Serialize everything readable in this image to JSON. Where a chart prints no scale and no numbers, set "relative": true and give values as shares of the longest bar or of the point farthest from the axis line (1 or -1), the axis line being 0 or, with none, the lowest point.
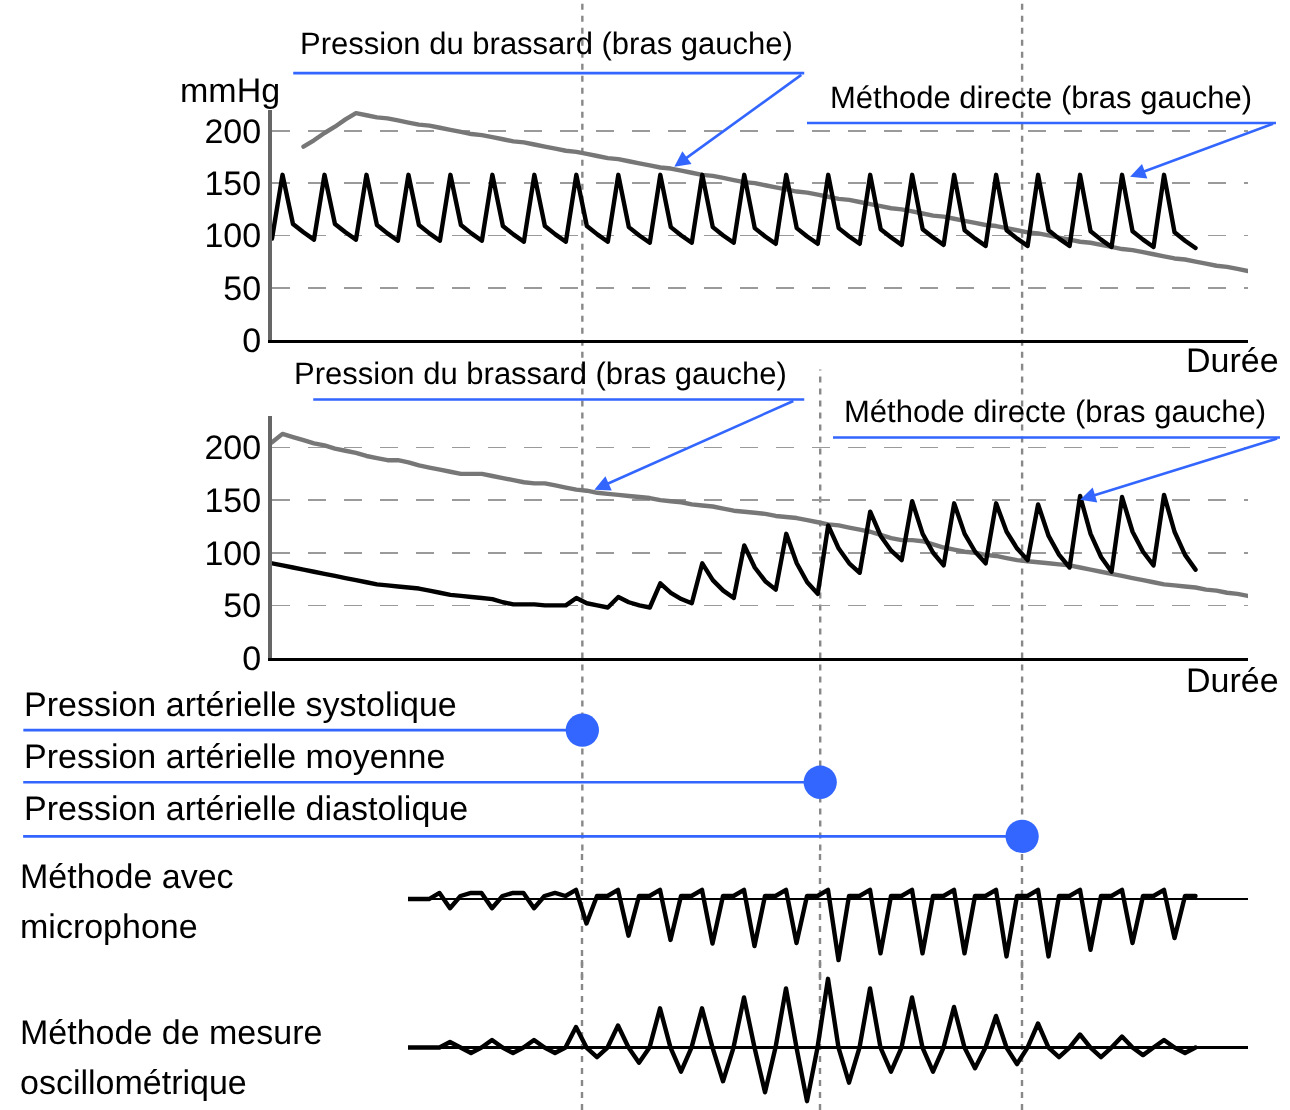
{
  "chart_data": [
    {
      "type": "line",
      "ylabel": "mmHg",
      "xlabel": "Durée",
      "grid": "y",
      "tick_labels": "y",
      "ylim": [
        0,
        220
      ],
      "yticks": [
        0,
        50,
        100,
        150,
        200
      ],
      "annotations": [
        "Pression du brassard (bras gauche)",
        "Méthode directe (bras gauche)"
      ],
      "categories": [
        null,
        null,
        null,
        null,
        null,
        null,
        null,
        null,
        null,
        null,
        null,
        null,
        null,
        null,
        null,
        null,
        null,
        null,
        null,
        null,
        null,
        null,
        null,
        null,
        null,
        null,
        null,
        null,
        null,
        null,
        null,
        null,
        null,
        null,
        null,
        null,
        null,
        null,
        null,
        null,
        null,
        null,
        null,
        null,
        null,
        null,
        null,
        null,
        null,
        null,
        null,
        null,
        null,
        null,
        null,
        null,
        null,
        null,
        null,
        null,
        null,
        null,
        null,
        null,
        null,
        null,
        null,
        null,
        null,
        null,
        null,
        null,
        null,
        null,
        null,
        null,
        null,
        null,
        null,
        null,
        null,
        null,
        null,
        null,
        null,
        null,
        null,
        null,
        null,
        null,
        null,
        null,
        null,
        null
      ],
      "series": [
        {
          "color": "#777777",
          "values": [
            null,
            null,
            null,
            185,
            191,
            198,
            204,
            211,
            217,
            215,
            213,
            212,
            210,
            208,
            206,
            205,
            203,
            201,
            199,
            197,
            196,
            194,
            192,
            190,
            189,
            187,
            185,
            183,
            181,
            180,
            178,
            176,
            174,
            173,
            171,
            169,
            167,
            165,
            164,
            162,
            160,
            158,
            157,
            155,
            153,
            151,
            150,
            148,
            146,
            144,
            142,
            141,
            139,
            137,
            135,
            134,
            132,
            130,
            128,
            126,
            125,
            123,
            121,
            119,
            118,
            116,
            114,
            112,
            110,
            109,
            107,
            105,
            103,
            102,
            100,
            98,
            96,
            94,
            93,
            91,
            89,
            87,
            86,
            84,
            82,
            80,
            78,
            77,
            75,
            73,
            71,
            70,
            68,
            66
          ]
        },
        {
          "color": "#000000",
          "values": [
            97,
            158,
            111,
            103,
            96,
            158,
            111,
            103,
            96,
            158,
            110,
            102,
            95,
            158,
            110,
            102,
            95,
            158,
            110,
            102,
            95,
            158,
            109,
            101,
            94,
            158,
            109,
            101,
            94,
            158,
            109,
            101,
            94,
            158,
            108,
            100,
            93,
            158,
            108,
            100,
            93,
            158,
            108,
            100,
            93,
            158,
            107,
            99,
            92,
            158,
            107,
            99,
            92,
            158,
            107,
            99,
            92,
            158,
            106,
            98,
            91,
            158,
            106,
            98,
            91,
            158,
            105,
            97,
            90,
            158,
            105,
            97,
            90,
            158,
            105,
            97,
            90,
            158,
            104,
            96,
            89,
            158,
            104,
            96,
            89,
            158,
            103,
            95,
            88,
            null,
            null,
            null,
            null,
            null
          ]
        }
      ]
    },
    {
      "type": "line",
      "xlabel": "Durée",
      "grid": "y",
      "tick_labels": "y",
      "ylim": [
        0,
        230
      ],
      "yticks": [
        0,
        50,
        100,
        150,
        200
      ],
      "annotations": [
        "Pression du brassard (bras gauche)",
        "Méthode directe (bras gauche)",
        "Pression artérielle systolique",
        "Pression artérielle moyenne",
        "Pression artérielle diastolique"
      ],
      "categories": [
        null,
        null,
        null,
        null,
        null,
        null,
        null,
        null,
        null,
        null,
        null,
        null,
        null,
        null,
        null,
        null,
        null,
        null,
        null,
        null,
        null,
        null,
        null,
        null,
        null,
        null,
        null,
        null,
        null,
        null,
        null,
        null,
        null,
        null,
        null,
        null,
        null,
        null,
        null,
        null,
        null,
        null,
        null,
        null,
        null,
        null,
        null,
        null,
        null,
        null,
        null,
        null,
        null,
        null,
        null,
        null,
        null,
        null,
        null,
        null,
        null,
        null,
        null,
        null,
        null,
        null,
        null,
        null,
        null,
        null,
        null,
        null,
        null,
        null,
        null,
        null,
        null,
        null,
        null,
        null,
        null,
        null,
        null,
        null,
        null,
        null,
        null,
        null,
        null,
        null,
        null,
        null,
        null,
        null
      ],
      "series": [
        {
          "color": "#777777",
          "values": [
            205,
            213,
            210,
            207,
            204,
            202,
            199,
            197,
            195,
            192,
            190,
            188,
            188,
            186,
            183,
            181,
            179,
            177,
            175,
            175,
            175,
            173,
            171,
            169,
            167,
            166,
            166,
            164,
            162,
            160,
            159,
            157,
            156,
            155,
            154,
            153,
            152,
            150,
            149,
            148,
            146,
            145,
            144,
            142,
            140,
            139,
            138,
            137,
            135,
            134,
            133,
            131,
            129,
            127,
            126,
            124,
            122,
            120,
            117,
            114,
            112,
            112,
            111,
            108,
            105,
            103,
            101,
            100,
            98,
            97,
            95,
            93,
            92,
            91,
            90,
            89,
            88,
            86,
            84,
            82,
            80,
            78,
            76,
            74,
            72,
            70,
            69,
            68,
            67,
            65,
            64,
            62,
            61,
            59
          ]
        },
        {
          "color": "#000000",
          "values": [
            90,
            88,
            86,
            84,
            82,
            80,
            78,
            76,
            74,
            72,
            70,
            69,
            68,
            67,
            66,
            64,
            62,
            60,
            59,
            58,
            57,
            56,
            53,
            51,
            51,
            51,
            50,
            50,
            50,
            57,
            52,
            50,
            48,
            58,
            53,
            50,
            48,
            71,
            62,
            56,
            52,
            90,
            74,
            64,
            57,
            107,
            86,
            73,
            65,
            118,
            90,
            72,
            61,
            126,
            104,
            90,
            81,
            139,
            116,
            102,
            93,
            149,
            118,
            100,
            88,
            147,
            118,
            101,
            90,
            147,
            120,
            104,
            93,
            146,
            116,
            98,
            86,
            154,
            118,
            96,
            82,
            153,
            120,
            101,
            88,
            155,
            120,
            98,
            84,
            null,
            null,
            null,
            null,
            null
          ]
        }
      ]
    },
    {
      "type": "line",
      "title": "Méthode avec microphone",
      "relative": true,
      "tick_labels": false,
      "color": "#000000",
      "categories": [
        null,
        null,
        null,
        null,
        null,
        null,
        null,
        null,
        null,
        null,
        null,
        null,
        null,
        null,
        null,
        null,
        null,
        null,
        null,
        null,
        null,
        null,
        null,
        null,
        null,
        null,
        null,
        null,
        null,
        null,
        null,
        null,
        null,
        null,
        null,
        null,
        null,
        null,
        null,
        null,
        null,
        null,
        null,
        null,
        null,
        null,
        null,
        null,
        null,
        null,
        null,
        null,
        null,
        null,
        null,
        null,
        null,
        null,
        null,
        null,
        null,
        null,
        null,
        null,
        null,
        null,
        null,
        null,
        null,
        null,
        null,
        null,
        null,
        null,
        null,
        null,
        null,
        null,
        null,
        null,
        null
      ],
      "values": [
        0,
        0,
        0,
        0.1,
        -0.15,
        0.05,
        0.1,
        0.1,
        -0.15,
        0.05,
        0.1,
        0.1,
        -0.15,
        0.05,
        0.1,
        0.05,
        0.15,
        -0.4,
        0.05,
        0.05,
        0.15,
        -0.6,
        0.05,
        0.05,
        0.15,
        -0.67,
        0.05,
        0.05,
        0.15,
        -0.73,
        0.05,
        0.05,
        0.15,
        -0.77,
        0.05,
        0.05,
        0.15,
        -0.72,
        0.05,
        0.05,
        0.15,
        -1,
        0.05,
        0.05,
        0.15,
        -0.89,
        0.05,
        0.05,
        0.15,
        -0.89,
        0.05,
        0.05,
        0.15,
        -0.89,
        0.05,
        0.05,
        0.15,
        -0.94,
        0.05,
        0.05,
        0.15,
        -0.94,
        0.05,
        0.05,
        0.15,
        -0.83,
        0.05,
        0.05,
        0.15,
        -0.72,
        0.05,
        0.05,
        0.15,
        -0.64,
        0.05,
        0.05,
        null,
        null,
        null,
        null,
        null
      ]
    },
    {
      "type": "line",
      "title": "Méthode de mesure oscillométrique",
      "relative": true,
      "tick_labels": false,
      "color": "#000000",
      "categories": [
        null,
        null,
        null,
        null,
        null,
        null,
        null,
        null,
        null,
        null,
        null,
        null,
        null,
        null,
        null,
        null,
        null,
        null,
        null,
        null,
        null,
        null,
        null,
        null,
        null,
        null,
        null,
        null,
        null,
        null,
        null,
        null,
        null,
        null,
        null,
        null,
        null,
        null,
        null,
        null,
        null,
        null,
        null,
        null,
        null,
        null,
        null,
        null,
        null,
        null,
        null,
        null,
        null,
        null,
        null,
        null,
        null,
        null,
        null,
        null,
        null,
        null,
        null,
        null,
        null,
        null,
        null,
        null,
        null,
        null,
        null,
        null,
        null,
        null,
        null,
        null,
        null,
        null,
        null,
        null,
        null
      ],
      "values": [
        0,
        0,
        0,
        0,
        0.08,
        0,
        -0.08,
        0,
        0.11,
        0,
        -0.08,
        0,
        0.11,
        0,
        -0.08,
        0,
        0.3,
        0,
        -0.14,
        0,
        0.32,
        0,
        -0.22,
        0,
        0.57,
        0,
        -0.35,
        0,
        0.57,
        0,
        -0.49,
        0,
        0.73,
        0,
        -0.65,
        0,
        0.86,
        0,
        -0.78,
        0,
        1,
        0,
        -0.51,
        0,
        0.86,
        0,
        -0.35,
        0,
        0.73,
        0,
        -0.35,
        0,
        0.59,
        0,
        -0.3,
        0,
        0.46,
        0,
        -0.24,
        0,
        0.35,
        0,
        -0.14,
        0,
        0.19,
        0,
        -0.14,
        0,
        0.16,
        0,
        -0.11,
        0,
        0.11,
        0,
        -0.08,
        0,
        null,
        null,
        null,
        null,
        null
      ]
    }
  ]
}
